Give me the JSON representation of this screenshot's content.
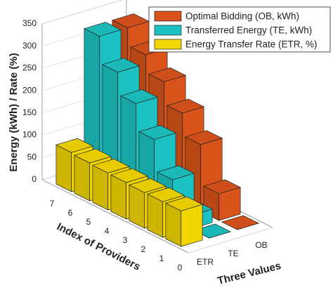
{
  "chart_data": {
    "type": "bar3d",
    "xlabel": "Index of Providers",
    "ylabel": "Three Values",
    "zlabel": "Energy (kWh) / Rate (%)",
    "x": [
      1,
      2,
      3,
      4,
      5,
      6,
      7
    ],
    "xticks": [
      0,
      1,
      2,
      3,
      4,
      5,
      6,
      7
    ],
    "xlim": [
      0,
      8
    ],
    "categories": [
      "ETR",
      "TE",
      "OB"
    ],
    "zlim": [
      0,
      350
    ],
    "zticks": [
      0,
      50,
      100,
      150,
      200,
      250,
      300,
      350
    ],
    "grid": true,
    "legend": "upper right",
    "series": [
      {
        "name": "Energy Transfer Rate (ETR, %)",
        "color": "#f2d600",
        "values": [
          80,
          80,
          80,
          82,
          83,
          85,
          88
        ]
      },
      {
        "name": "Transferred Energy (TE, kWh)",
        "color": "#1cc2c2",
        "values": [
          0,
          30,
          90,
          160,
          220,
          270,
          330
        ]
      },
      {
        "name": "Optimal Bidding (OB, kWh)",
        "color": "#d9531a",
        "values": [
          0,
          60,
          150,
          200,
          250,
          290,
          330
        ]
      }
    ]
  }
}
